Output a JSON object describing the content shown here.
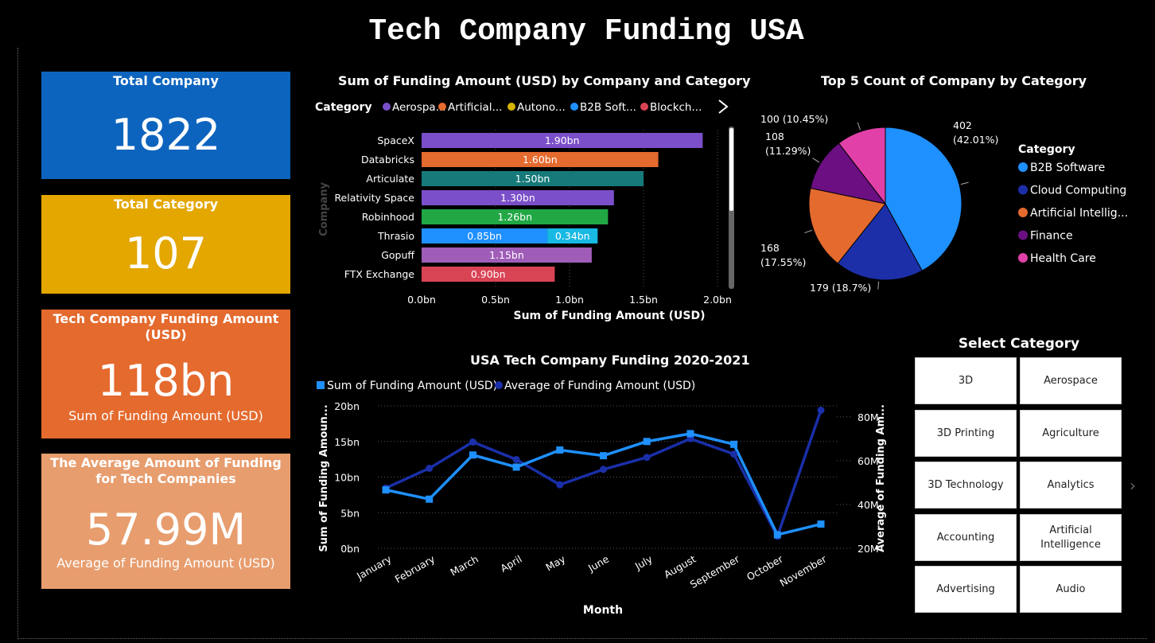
{
  "page_title": "Tech Company Funding USA",
  "kpi_cards": [
    {
      "label": "Total Company",
      "value": "1822",
      "sub": ""
    },
    {
      "label": "Total Category",
      "value": "107",
      "sub": ""
    },
    {
      "label": "Tech Company Funding Amount (USD)",
      "value": "118bn",
      "sub": "Sum of Funding Amount (USD)"
    },
    {
      "label": "The Average Amount of Funding for Tech Companies",
      "value": "57.99M",
      "sub": "Average of Funding Amount (USD)"
    }
  ],
  "colors": {
    "card_blue": "#0c64be",
    "card_yellow": "#e3a700",
    "card_orange": "#e46a2e",
    "card_peach": "#e79d6e",
    "sum_series": "#1e90ff",
    "avg_series": "#1a2fa8"
  },
  "chart_data": [
    {
      "type": "bar",
      "title": "Sum of Funding Amount (USD) by Company and Category",
      "legend_title": "Category",
      "legend_items": [
        {
          "label": "Aerospa...",
          "color": "#7b4fc9"
        },
        {
          "label": "Artificial...",
          "color": "#e46a2e"
        },
        {
          "label": "Autono...",
          "color": "#d4b400"
        },
        {
          "label": "B2B Soft...",
          "color": "#1e90ff"
        },
        {
          "label": "Blockch...",
          "color": "#d94455"
        }
      ],
      "legend_next_icon": "chevron-right-icon",
      "xlabel": "Sum of Funding Amount (USD)",
      "ylabel": "Company",
      "xlim": [
        0,
        2
      ],
      "xticks": [
        "0.0bn",
        "0.5bn",
        "1.0bn",
        "1.5bn",
        "2.0bn"
      ],
      "categories": [
        "SpaceX",
        "Databricks",
        "Articulate",
        "Relativity Space",
        "Robinhood",
        "Thrasio",
        "Gopuff",
        "FTX Exchange"
      ],
      "bars": [
        {
          "company": "SpaceX",
          "segments": [
            {
              "value": 1.9,
              "label": "1.90bn",
              "color": "#7b4fc9"
            }
          ]
        },
        {
          "company": "Databricks",
          "segments": [
            {
              "value": 1.6,
              "label": "1.60bn",
              "color": "#e46a2e"
            }
          ]
        },
        {
          "company": "Articulate",
          "segments": [
            {
              "value": 1.5,
              "label": "1.50bn",
              "color": "#177a7a"
            }
          ]
        },
        {
          "company": "Relativity Space",
          "segments": [
            {
              "value": 1.3,
              "label": "1.30bn",
              "color": "#7b4fc9"
            }
          ]
        },
        {
          "company": "Robinhood",
          "segments": [
            {
              "value": 1.26,
              "label": "1.26bn",
              "color": "#21a845"
            }
          ]
        },
        {
          "company": "Thrasio",
          "segments": [
            {
              "value": 0.85,
              "label": "0.85bn",
              "color": "#1e90ff"
            },
            {
              "value": 0.34,
              "label": "0.34bn",
              "color": "#18b9e3"
            }
          ]
        },
        {
          "company": "Gopuff",
          "segments": [
            {
              "value": 1.15,
              "label": "1.15bn",
              "color": "#a05db8"
            }
          ]
        },
        {
          "company": "FTX Exchange",
          "segments": [
            {
              "value": 0.9,
              "label": "0.90bn",
              "color": "#d94455"
            }
          ]
        }
      ]
    },
    {
      "type": "pie",
      "title": "Top 5 Count of Company by Category",
      "legend_title": "Category",
      "slices": [
        {
          "name": "B2B Software",
          "legend": "B2B Software",
          "value": 402,
          "pct": 42.01,
          "label": "402\n(42.01%)",
          "color": "#1e90ff"
        },
        {
          "name": "Cloud Computing",
          "legend": "Cloud Computing",
          "value": 179,
          "pct": 18.7,
          "label": "179 (18.7%)",
          "color": "#1c2fa8"
        },
        {
          "name": "Artificial Intelligence",
          "legend": "Artificial Intellig...",
          "value": 168,
          "pct": 17.55,
          "label": "168\n(17.55%)",
          "color": "#e46a2e"
        },
        {
          "name": "Finance",
          "legend": "Finance",
          "value": 108,
          "pct": 11.29,
          "label": "108\n(11.29%)",
          "color": "#6b0f82"
        },
        {
          "name": "Health Care",
          "legend": "Health Care",
          "value": 100,
          "pct": 10.45,
          "label": "100 (10.45%)",
          "color": "#e040a8"
        }
      ]
    },
    {
      "type": "line",
      "title": "USA Tech Company Funding 2020-2021",
      "xlabel": "Month",
      "ylabel": "Sum of Funding Amoun...",
      "y2label": "Average of Funding Am...",
      "x": [
        "January",
        "February",
        "March",
        "April",
        "May",
        "June",
        "July",
        "August",
        "September",
        "October",
        "November"
      ],
      "ylim": [
        0,
        20
      ],
      "yticks": [
        "0bn",
        "5bn",
        "10bn",
        "15bn",
        "20bn"
      ],
      "y2lim": [
        20,
        85
      ],
      "y2ticks": [
        "20M",
        "40M",
        "60M",
        "80M"
      ],
      "series": [
        {
          "name": "Sum of Funding Amount (USD)",
          "axis": "left",
          "marker": "square",
          "color": "#1e90ff",
          "values": [
            8.2,
            6.9,
            13.1,
            11.4,
            13.8,
            13.0,
            15.0,
            16.1,
            14.6,
            1.9,
            3.4
          ]
        },
        {
          "name": "Average of Funding Amount (USD)",
          "axis": "right",
          "marker": "circle",
          "color": "#1a2fa8",
          "values": [
            47.5,
            56.5,
            68.5,
            60.5,
            49.0,
            56.0,
            61.5,
            70.0,
            63.0,
            25.5,
            83.0
          ]
        }
      ]
    }
  ],
  "slicer": {
    "title": "Select Category",
    "options": [
      "3D",
      "Aerospace",
      "3D Printing",
      "Agriculture",
      "3D Technology",
      "Analytics",
      "Accounting",
      "Artificial Intelligence",
      "Advertising",
      "Audio"
    ],
    "next_icon": "chevron-right-icon"
  }
}
